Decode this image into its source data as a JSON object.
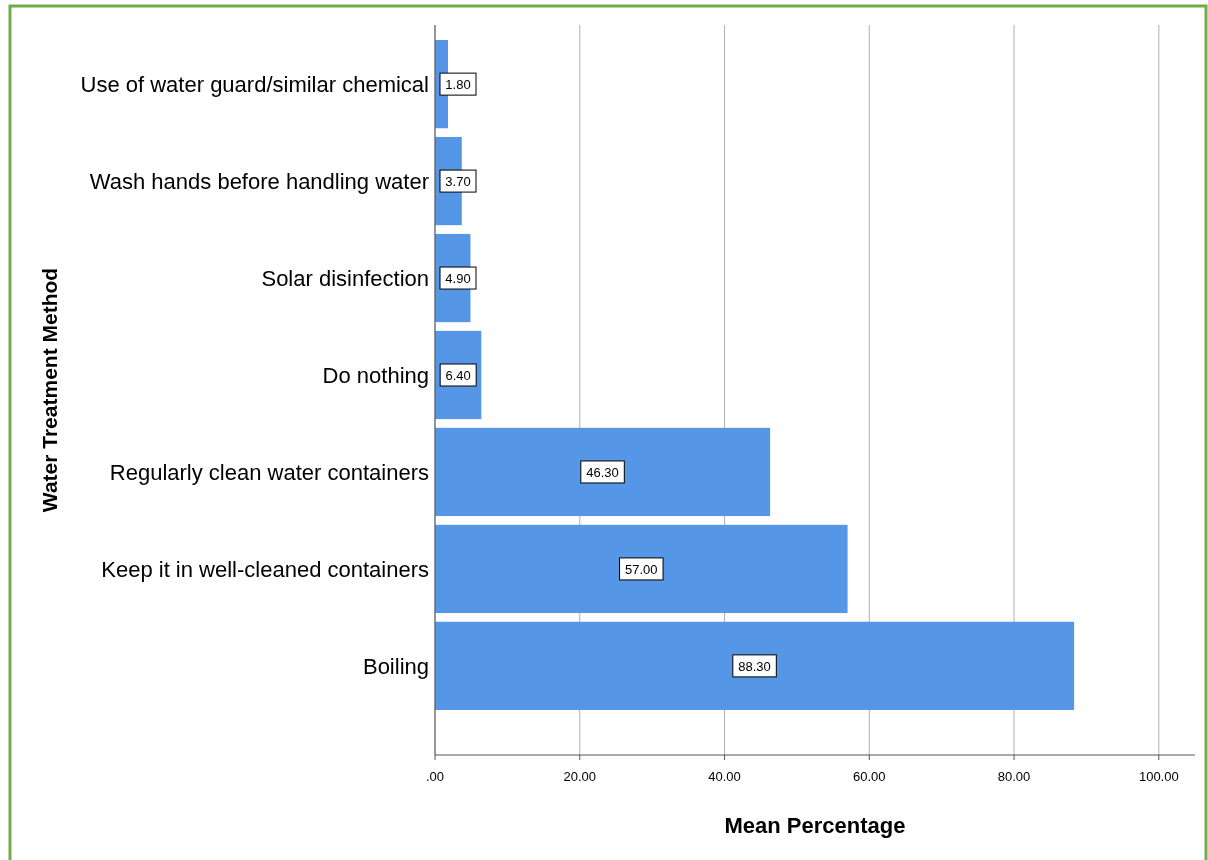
{
  "chart_data": {
    "type": "bar",
    "orientation": "horizontal",
    "xlabel": "Mean Percentage",
    "ylabel": "Water Treatment Method",
    "categories": [
      "Use of water guard/similar chemical",
      "Wash hands before handling water",
      "Solar disinfection",
      "Do nothing",
      "Regularly clean water containers",
      "Keep it in well-cleaned containers",
      "Boiling"
    ],
    "values": [
      1.8,
      3.7,
      4.9,
      6.4,
      46.3,
      57.0,
      88.3
    ],
    "value_labels": [
      "1.80",
      "3.70",
      "4.90",
      "6.40",
      "46.30",
      "57.00",
      "88.30"
    ],
    "color": "#5596e6",
    "xlim": [
      0,
      105
    ],
    "xticks": [
      {
        "value": 0,
        "label": ".00"
      },
      {
        "value": 20,
        "label": "20.00"
      },
      {
        "value": 40,
        "label": "40.00"
      },
      {
        "value": 60,
        "label": "60.00"
      },
      {
        "value": 80,
        "label": "80.00"
      },
      {
        "value": 100,
        "label": "100.00"
      }
    ],
    "grid": "x"
  }
}
